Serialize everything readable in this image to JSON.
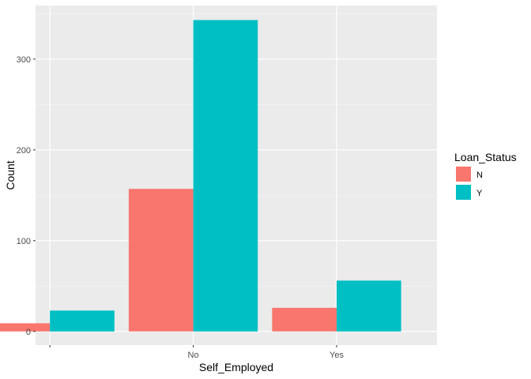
{
  "chart_data": {
    "type": "bar",
    "xlabel": "Self_Employed",
    "ylabel": "Count",
    "categories": [
      "",
      "No",
      "Yes"
    ],
    "series": [
      {
        "name": "N",
        "values": [
          9,
          157,
          26
        ],
        "color": "#F8766D"
      },
      {
        "name": "Y",
        "values": [
          23,
          343,
          56
        ],
        "color": "#00BFC4"
      }
    ],
    "ylim": [
      -15,
      359
    ],
    "yticks": [
      0,
      100,
      200,
      300
    ],
    "grid": true,
    "legend": {
      "title": "Loan_Status",
      "position": "right"
    }
  }
}
